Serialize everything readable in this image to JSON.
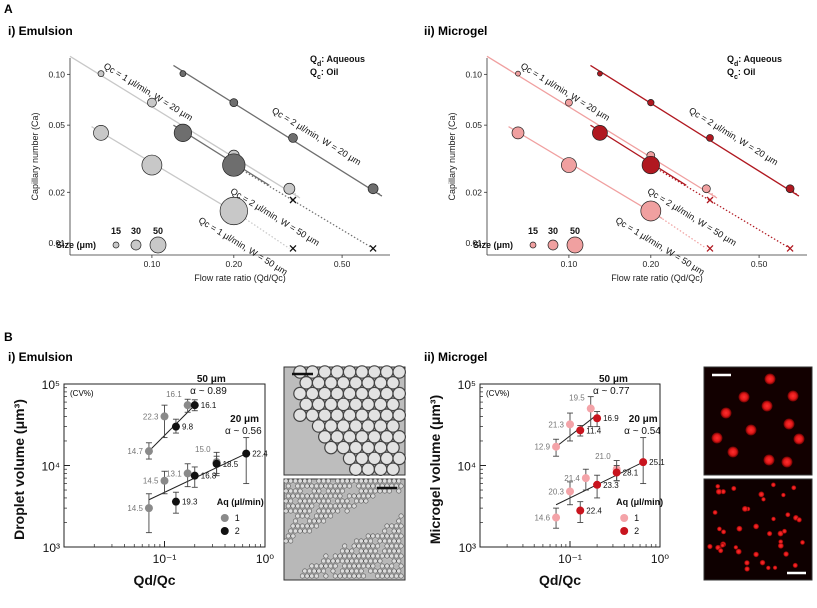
{
  "panel_labels": {
    "A": "A",
    "B": "B"
  },
  "titles": {
    "A_i": "i)  Emulsion",
    "A_ii": "ii)  Microgel",
    "B_i": "i)  Emulsion",
    "B_ii": "ii)  Microgel"
  },
  "colors": {
    "em_gray_light": "#c8c8c8",
    "em_gray_dark": "#6e6e6e",
    "mg_light": "#f0a0a0",
    "mg_dark": "#b01820",
    "b_em1": "#8a8a8a",
    "b_em2": "#111111",
    "b_mg1": "#f4a3a8",
    "b_mg2": "#c8141e"
  },
  "scalebar_note": "",
  "chart_data": [
    {
      "id": "A_i",
      "type": "scatter",
      "title": "i)  Emulsion",
      "xlabel": "Flow rate ratio (Qd/Qc)",
      "ylabel": "Capillary number (Ca)",
      "xscale": "log",
      "yscale": "log",
      "xlim": [
        0.05,
        0.75
      ],
      "ylim": [
        0.0085,
        0.125
      ],
      "xticks": [
        {
          "v": 0.1,
          "label": "0.10"
        },
        {
          "v": 0.2,
          "label": "0.20"
        },
        {
          "v": 0.5,
          "label": "0.50"
        }
      ],
      "yticks": [
        {
          "v": 0.01,
          "label": "0.01"
        },
        {
          "v": 0.02,
          "label": "0.02"
        },
        {
          "v": 0.05,
          "label": "0.05"
        },
        {
          "v": 0.1,
          "label": "0.10"
        }
      ],
      "legend_box": {
        "line1": "Qd: Aqueous",
        "line2": "Qc: Oil",
        "sub1": "d",
        "sub2": "c",
        "lbl1": ": Aqueous",
        "lbl2": ": Oil"
      },
      "size_legend": {
        "title": "Size (μm)",
        "labels": [
          "15",
          "30",
          "50"
        ]
      },
      "series": [
        {
          "name": "Qc = 1 μl/min, W = 20 μm",
          "color_key": "em_gray_light",
          "points": [
            {
              "x": 0.065,
              "y": 0.101,
              "size": 12
            },
            {
              "x": 0.1,
              "y": 0.068,
              "size": 18
            },
            {
              "x": 0.2,
              "y": 0.033,
              "size": 22
            },
            {
              "x": 0.32,
              "y": 0.021,
              "size": 22
            }
          ],
          "line": [
            [
              0.05,
              0.128
            ],
            [
              0.35,
              0.0185
            ]
          ],
          "dotted": [
            [
              0.32,
              0.021
            ],
            [
              0.35,
              0.0185
            ]
          ],
          "x_marker": null
        },
        {
          "name": "Qc = 2 μl/min, W = 20 μm",
          "color_key": "em_gray_dark",
          "points": [
            {
              "x": 0.13,
              "y": 0.101,
              "size": 12
            },
            {
              "x": 0.2,
              "y": 0.068,
              "size": 16
            },
            {
              "x": 0.33,
              "y": 0.042,
              "size": 18
            },
            {
              "x": 0.65,
              "y": 0.021,
              "size": 20
            }
          ],
          "line": [
            [
              0.12,
              0.113
            ],
            [
              0.7,
              0.019
            ]
          ],
          "dotted": [
            [
              0.65,
              0.021
            ],
            [
              0.7,
              0.019
            ]
          ],
          "x_marker": null
        },
        {
          "name": "Qc = 2 μl/min, W = 50 μm",
          "color_key": "em_gray_dark",
          "points": [
            {
              "x": 0.13,
              "y": 0.045,
              "size": 35
            },
            {
              "x": 0.2,
              "y": 0.029,
              "size": 45
            }
          ],
          "line": [
            [
              0.12,
              0.05
            ],
            [
              0.27,
              0.022
            ]
          ],
          "dotted": [
            [
              0.2,
              0.029
            ],
            [
              0.65,
              0.0093
            ]
          ],
          "x_marker": {
            "x": 0.33,
            "y": 0.018
          },
          "x_marker2": {
            "x": 0.65,
            "y": 0.0093
          }
        },
        {
          "name": "Qc = 1 μl/min, W = 50 μm",
          "color_key": "em_gray_light",
          "points": [
            {
              "x": 0.065,
              "y": 0.045,
              "size": 30
            },
            {
              "x": 0.1,
              "y": 0.029,
              "size": 40
            },
            {
              "x": 0.2,
              "y": 0.0155,
              "size": 55
            }
          ],
          "line": [
            [
              0.06,
              0.049
            ],
            [
              0.22,
              0.014
            ]
          ],
          "dotted": [
            [
              0.2,
              0.0155
            ],
            [
              0.32,
              0.0093
            ]
          ],
          "x_marker": {
            "x": 0.33,
            "y": 0.0093
          }
        }
      ],
      "line_labels": [
        {
          "text": "Qc = 1 μl/min, W = 20 μm"
        },
        {
          "text": "Qc = 2 μl/min, W = 20 μm"
        },
        {
          "text": "Qc = 2 μl/min, W = 50 μm"
        },
        {
          "text": "Qc = 1 μl/min, W = 50 μm"
        }
      ]
    },
    {
      "id": "A_ii",
      "type": "scatter",
      "title": "ii)  Microgel",
      "xlabel": "Flow rate ratio (Qd/Qc)",
      "ylabel": "Capillary number (Ca)",
      "xscale": "log",
      "yscale": "log",
      "xlim": [
        0.05,
        0.75
      ],
      "ylim": [
        0.0085,
        0.125
      ],
      "xticks": [
        {
          "v": 0.1,
          "label": "0.10"
        },
        {
          "v": 0.2,
          "label": "0.20"
        },
        {
          "v": 0.5,
          "label": "0.50"
        }
      ],
      "yticks": [
        {
          "v": 0.01,
          "label": "0.01"
        },
        {
          "v": 0.02,
          "label": "0.02"
        },
        {
          "v": 0.05,
          "label": "0.05"
        },
        {
          "v": 0.1,
          "label": "0.10"
        }
      ],
      "legend_box": {
        "line1": "Qd: Aqueous",
        "line2": "Qc: Oil",
        "sub1": "d",
        "sub2": "c",
        "lbl1": ": Aqueous",
        "lbl2": ": Oil"
      },
      "size_legend": {
        "title": "Size (μm)",
        "labels": [
          "15",
          "30",
          "50"
        ]
      },
      "series": [
        {
          "name": "Qc = 1 μl/min, W = 20 μm",
          "color_key": "mg_light",
          "points": [
            {
              "x": 0.065,
              "y": 0.101,
              "size": 10
            },
            {
              "x": 0.1,
              "y": 0.068,
              "size": 14
            },
            {
              "x": 0.2,
              "y": 0.033,
              "size": 16
            },
            {
              "x": 0.32,
              "y": 0.021,
              "size": 16
            }
          ],
          "line": [
            [
              0.05,
              0.128
            ],
            [
              0.35,
              0.0185
            ]
          ],
          "dotted": [
            [
              0.32,
              0.021
            ],
            [
              0.35,
              0.0185
            ]
          ],
          "x_marker": null
        },
        {
          "name": "Qc = 2 μl/min, W = 20 μm",
          "color_key": "mg_dark",
          "points": [
            {
              "x": 0.13,
              "y": 0.101,
              "size": 10
            },
            {
              "x": 0.2,
              "y": 0.068,
              "size": 13
            },
            {
              "x": 0.33,
              "y": 0.042,
              "size": 14
            },
            {
              "x": 0.65,
              "y": 0.021,
              "size": 16
            }
          ],
          "line": [
            [
              0.12,
              0.113
            ],
            [
              0.7,
              0.019
            ]
          ],
          "dotted": [
            [
              0.65,
              0.021
            ],
            [
              0.7,
              0.019
            ]
          ],
          "x_marker": null
        },
        {
          "name": "Qc = 2 μl/min, W = 50 μm",
          "color_key": "mg_dark",
          "points": [
            {
              "x": 0.13,
              "y": 0.045,
              "size": 30
            },
            {
              "x": 0.2,
              "y": 0.029,
              "size": 35
            }
          ],
          "line": [
            [
              0.12,
              0.05
            ],
            [
              0.27,
              0.022
            ]
          ],
          "dotted": [
            [
              0.2,
              0.029
            ],
            [
              0.65,
              0.0093
            ]
          ],
          "x_marker": {
            "x": 0.33,
            "y": 0.018
          },
          "x_marker2": {
            "x": 0.65,
            "y": 0.0093
          }
        },
        {
          "name": "Qc = 1 μl/min, W = 50 μm",
          "color_key": "mg_light",
          "points": [
            {
              "x": 0.065,
              "y": 0.045,
              "size": 24
            },
            {
              "x": 0.1,
              "y": 0.029,
              "size": 30
            },
            {
              "x": 0.2,
              "y": 0.0155,
              "size": 40
            }
          ],
          "line": [
            [
              0.06,
              0.049
            ],
            [
              0.22,
              0.014
            ]
          ],
          "dotted": [
            [
              0.2,
              0.0155
            ],
            [
              0.32,
              0.0093
            ]
          ],
          "x_marker": {
            "x": 0.33,
            "y": 0.0093
          }
        }
      ],
      "line_labels": [
        {
          "text": "Qc = 1 μl/min, W = 20 μm"
        },
        {
          "text": "Qc = 2 μl/min, W = 20 μm"
        },
        {
          "text": "Qc = 2 μl/min, W = 50 μm"
        },
        {
          "text": "Qc = 1 μl/min, W = 50 μm"
        }
      ]
    },
    {
      "id": "B_i",
      "type": "scatter",
      "title": "i)  Emulsion",
      "xlabel": "Qd/Qc",
      "ylabel": "Droplet volume (μm³)",
      "xscale": "log",
      "yscale": "log",
      "xlim": [
        0.01,
        1
      ],
      "ylim": [
        1000,
        100000
      ],
      "xticks": [
        {
          "v": 0.1,
          "label": "10⁻¹"
        },
        {
          "v": 1,
          "label": "10⁰"
        }
      ],
      "yticks": [
        {
          "v": 1000,
          "label": "10³"
        },
        {
          "v": 10000,
          "label": "10⁴"
        },
        {
          "v": 100000,
          "label": "10⁵"
        }
      ],
      "cv_label": "(CV%)",
      "legend": {
        "title": "Aq (μl/min)",
        "entries": [
          "1",
          "2"
        ]
      },
      "fit_labels": [
        {
          "size": "50 μm",
          "alpha": "α ~ 0.89"
        },
        {
          "size": "20 μm",
          "alpha": "α ~ 0.56"
        }
      ],
      "series": [
        {
          "name": "50 μm, Aq 1",
          "color_key": "b_em1",
          "points": [
            {
              "x": 0.07,
              "y": 15000,
              "err_lo": 12000,
              "err_hi": 19000,
              "cv": "14.7"
            },
            {
              "x": 0.1,
              "y": 40000,
              "err_lo": 22000,
              "err_hi": 55000,
              "cv": "22.3"
            },
            {
              "x": 0.17,
              "y": 55000,
              "err_lo": 45000,
              "err_hi": 65000,
              "cv": "16.1"
            }
          ]
        },
        {
          "name": "50 μm, Aq 2",
          "color_key": "b_em2",
          "points": [
            {
              "x": 0.13,
              "y": 30000,
              "err_lo": 25000,
              "err_hi": 37000,
              "cv": "9.8"
            },
            {
              "x": 0.2,
              "y": 55000,
              "err_lo": 47000,
              "err_hi": 64000,
              "cv": "16.1"
            }
          ]
        },
        {
          "name": "20 μm, Aq 1",
          "color_key": "b_em1",
          "points": [
            {
              "x": 0.07,
              "y": 3000,
              "err_lo": 1500,
              "err_hi": 4500,
              "cv": "14.5"
            },
            {
              "x": 0.1,
              "y": 6500,
              "err_lo": 4500,
              "err_hi": 8500,
              "cv": "14.5"
            },
            {
              "x": 0.17,
              "y": 8000,
              "err_lo": 5500,
              "err_hi": 10500,
              "cv": "13.1"
            },
            {
              "x": 0.33,
              "y": 11000,
              "err_lo": 7500,
              "err_hi": 14500,
              "cv": "15.0"
            }
          ]
        },
        {
          "name": "20 μm, Aq 2",
          "color_key": "b_em2",
          "points": [
            {
              "x": 0.13,
              "y": 3600,
              "err_lo": 2600,
              "err_hi": 4700,
              "cv": "19.3"
            },
            {
              "x": 0.2,
              "y": 7500,
              "err_lo": 5400,
              "err_hi": 9600,
              "cv": "16.8"
            },
            {
              "x": 0.33,
              "y": 10500,
              "err_lo": 8000,
              "err_hi": 13000,
              "cv": "18.5"
            },
            {
              "x": 0.65,
              "y": 14000,
              "err_lo": 6000,
              "err_hi": 22000,
              "cv": "22.4"
            }
          ]
        }
      ],
      "fits": [
        {
          "from": [
            0.07,
            15000
          ],
          "to": [
            0.2,
            55000
          ]
        },
        {
          "from": [
            0.07,
            3800
          ],
          "to": [
            0.65,
            14000
          ]
        }
      ]
    },
    {
      "id": "B_ii",
      "type": "scatter",
      "title": "ii)  Microgel",
      "xlabel": "Qd/Qc",
      "ylabel": "Microgel volume (μm³)",
      "xscale": "log",
      "yscale": "log",
      "xlim": [
        0.01,
        1
      ],
      "ylim": [
        1000,
        100000
      ],
      "xticks": [
        {
          "v": 0.1,
          "label": "10⁻¹"
        },
        {
          "v": 1,
          "label": "10⁰"
        }
      ],
      "yticks": [
        {
          "v": 1000,
          "label": "10³"
        },
        {
          "v": 10000,
          "label": "10⁴"
        },
        {
          "v": 100000,
          "label": "10⁵"
        }
      ],
      "cv_label": "(CV%)",
      "legend": {
        "title": "Aq (μl/min)",
        "entries": [
          "1",
          "2"
        ]
      },
      "fit_labels": [
        {
          "size": "50 μm",
          "alpha": "α ~ 0.77"
        },
        {
          "size": "20 μm",
          "alpha": "α ~ 0.54"
        }
      ],
      "series": [
        {
          "name": "50 μm, Aq 1",
          "color_key": "b_mg1",
          "points": [
            {
              "x": 0.07,
              "y": 17000,
              "err_lo": 13000,
              "err_hi": 21000,
              "cv": "12.9"
            },
            {
              "x": 0.1,
              "y": 32000,
              "err_lo": 20000,
              "err_hi": 44000,
              "cv": "21.3"
            },
            {
              "x": 0.17,
              "y": 50000,
              "err_lo": 30000,
              "err_hi": 70000,
              "cv": "19.5"
            }
          ]
        },
        {
          "name": "50 μm, Aq 2",
          "color_key": "b_mg2",
          "points": [
            {
              "x": 0.13,
              "y": 27000,
              "err_lo": 23000,
              "err_hi": 31000,
              "cv": "11.4"
            },
            {
              "x": 0.2,
              "y": 38000,
              "err_lo": 30000,
              "err_hi": 46000,
              "cv": "16.9"
            }
          ]
        },
        {
          "name": "20 μm, Aq 1",
          "color_key": "b_mg1",
          "points": [
            {
              "x": 0.07,
              "y": 2300,
              "err_lo": 1700,
              "err_hi": 3000,
              "cv": "14.6"
            },
            {
              "x": 0.1,
              "y": 4800,
              "err_lo": 3300,
              "err_hi": 6300,
              "cv": "20.3"
            },
            {
              "x": 0.15,
              "y": 7000,
              "err_lo": 5000,
              "err_hi": 9000,
              "cv": "21.4"
            },
            {
              "x": 0.33,
              "y": 9000,
              "err_lo": 6500,
              "err_hi": 11500,
              "cv": "21.0"
            }
          ]
        },
        {
          "name": "20 μm, Aq 2",
          "color_key": "b_mg2",
          "points": [
            {
              "x": 0.13,
              "y": 2800,
              "err_lo": 2000,
              "err_hi": 3600,
              "cv": "22.4"
            },
            {
              "x": 0.2,
              "y": 5800,
              "err_lo": 4000,
              "err_hi": 7600,
              "cv": "23.3"
            },
            {
              "x": 0.33,
              "y": 8200,
              "err_lo": 6500,
              "err_hi": 10000,
              "cv": "28.1"
            },
            {
              "x": 0.65,
              "y": 11000,
              "err_lo": 6000,
              "err_hi": 22000,
              "cv": "25.1"
            }
          ]
        }
      ],
      "fits": [
        {
          "from": [
            0.07,
            17000
          ],
          "to": [
            0.2,
            42000
          ]
        },
        {
          "from": [
            0.07,
            3300
          ],
          "to": [
            0.65,
            11000
          ]
        }
      ]
    }
  ]
}
